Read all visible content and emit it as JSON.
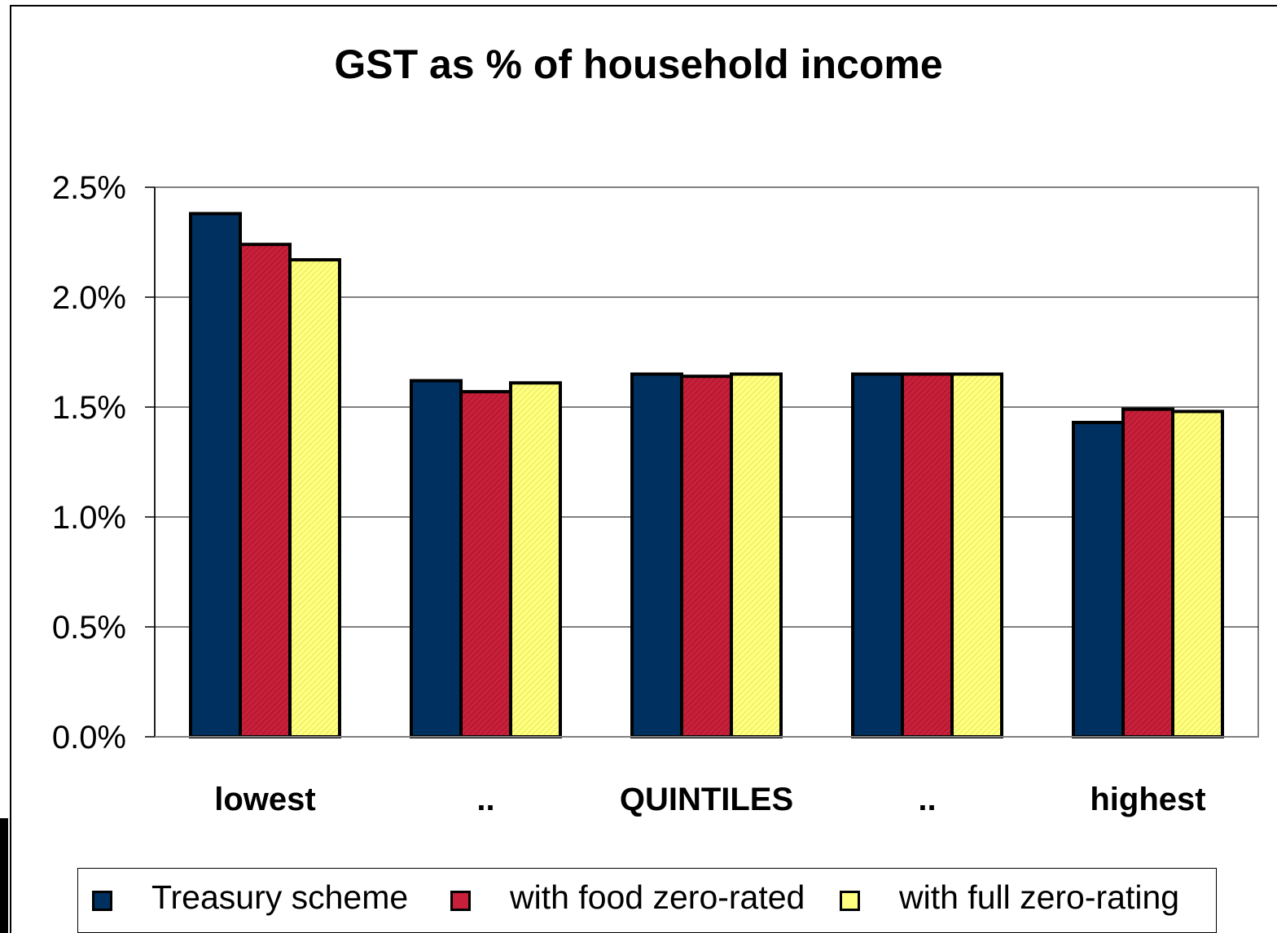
{
  "chart_data": {
    "type": "bar",
    "title": "GST as % of household income",
    "categories": [
      "lowest",
      "..",
      "QUINTILES",
      "..",
      "highest"
    ],
    "series": [
      {
        "name": "Treasury scheme",
        "values": [
          2.38,
          1.62,
          1.65,
          1.65,
          1.43
        ],
        "color": "#00305f"
      },
      {
        "name": "with food zero-rated",
        "values": [
          2.24,
          1.57,
          1.64,
          1.65,
          1.49
        ],
        "color": "#c8203a"
      },
      {
        "name": "with full zero-rating",
        "values": [
          2.17,
          1.61,
          1.65,
          1.65,
          1.48
        ],
        "color": "#ffff80"
      }
    ],
    "yticks": [
      "0.0%",
      "0.5%",
      "1.0%",
      "1.5%",
      "2.0%",
      "2.5%"
    ],
    "ylim": [
      0,
      2.5
    ],
    "grid": true,
    "legend_position": "bottom"
  }
}
